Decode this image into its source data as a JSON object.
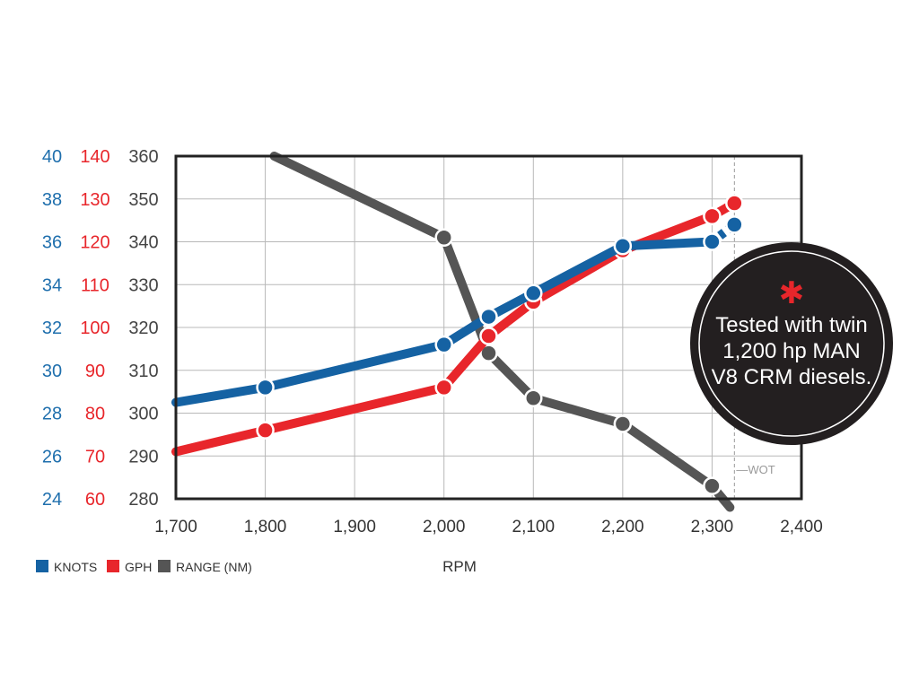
{
  "chart_data": {
    "type": "line",
    "xlabel": "RPM",
    "x_ticks": [
      "1,700",
      "1,800",
      "1,900",
      "2,000",
      "2,100",
      "2,200",
      "2,300",
      "2,400"
    ],
    "xlim": [
      1700,
      2400
    ],
    "axes": [
      {
        "id": "knots",
        "color": "#1f6fad",
        "ticks": [
          "24",
          "26",
          "28",
          "30",
          "32",
          "34",
          "36",
          "38",
          "40"
        ],
        "ylim": [
          24,
          40
        ]
      },
      {
        "id": "gph",
        "color": "#e8262b",
        "ticks": [
          "60",
          "70",
          "80",
          "90",
          "100",
          "110",
          "120",
          "130",
          "140"
        ],
        "ylim": [
          60,
          140
        ]
      },
      {
        "id": "range",
        "color": "#444444",
        "ticks": [
          "280",
          "290",
          "300",
          "310",
          "320",
          "330",
          "340",
          "350",
          "360"
        ],
        "ylim": [
          280,
          360
        ]
      }
    ],
    "series": [
      {
        "name": "KNOTS",
        "axis": "knots",
        "color": "#1562a3",
        "x": [
          1700,
          1800,
          2000,
          2050,
          2100,
          2200,
          2300,
          2325
        ],
        "y": [
          28.5,
          29.2,
          31.2,
          32.5,
          33.6,
          35.8,
          36.0,
          36.8
        ],
        "markers": [
          false,
          true,
          true,
          true,
          true,
          true,
          true,
          true
        ],
        "dashed_last": true
      },
      {
        "name": "GPH",
        "axis": "gph",
        "color": "#e8262b",
        "x": [
          1700,
          1800,
          2000,
          2050,
          2100,
          2200,
          2300,
          2325
        ],
        "y": [
          71,
          76,
          86,
          98,
          106,
          118,
          126,
          129
        ],
        "markers": [
          false,
          true,
          true,
          true,
          true,
          true,
          true,
          true
        ],
        "dashed_last": false
      },
      {
        "name": "RANGE (NM)",
        "axis": "range",
        "color": "#555555",
        "x": [
          1810,
          2000,
          2050,
          2100,
          2200,
          2300,
          2320
        ],
        "y": [
          360,
          341,
          314,
          303.5,
          297.5,
          283,
          278
        ],
        "markers": [
          false,
          true,
          true,
          true,
          true,
          true,
          false
        ],
        "dashed_last": false
      }
    ],
    "wot_rpm": 2325,
    "wot_label": "—WOT",
    "legend_position": "bottom-left",
    "grid": true,
    "annotation": {
      "line1": "Tested with twin",
      "line2": "1,200 hp MAN",
      "line3": "V8 CRM diesels.",
      "symbol": "✱"
    }
  }
}
